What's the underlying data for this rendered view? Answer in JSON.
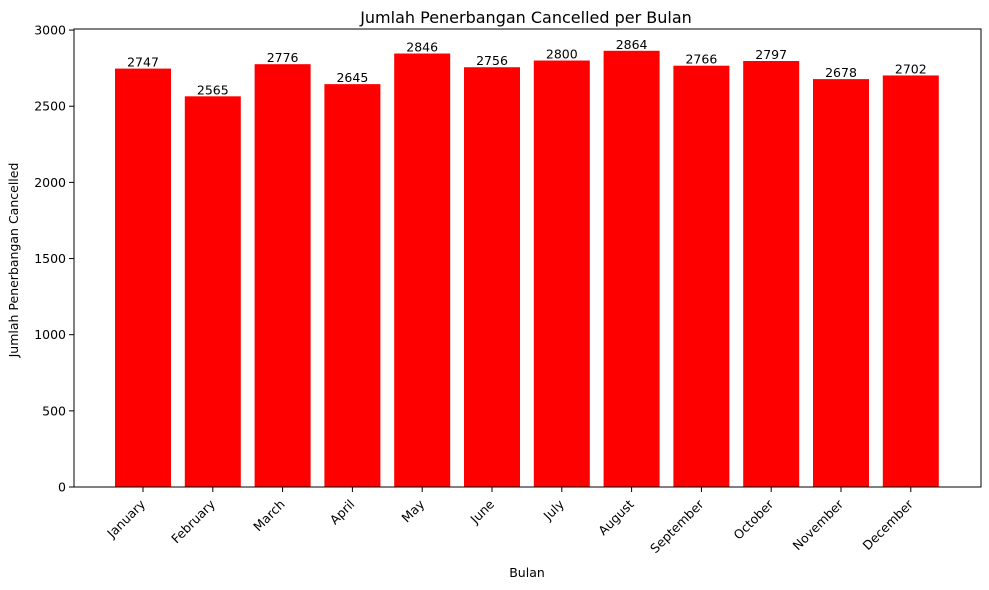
{
  "chart_data": {
    "type": "bar",
    "title": "Jumlah Penerbangan Cancelled per Bulan",
    "xlabel": "Bulan",
    "ylabel": "Jumlah Penerbangan Cancelled",
    "categories": [
      "January",
      "February",
      "March",
      "April",
      "May",
      "June",
      "July",
      "August",
      "September",
      "October",
      "November",
      "December"
    ],
    "values": [
      2747,
      2565,
      2776,
      2645,
      2846,
      2756,
      2800,
      2864,
      2766,
      2797,
      2678,
      2702
    ],
    "ylim": [
      0,
      3007
    ],
    "yticks": [
      0,
      500,
      1000,
      1500,
      2000,
      2500,
      3000
    ],
    "color": "#ff0000",
    "grid": false,
    "legend": false
  }
}
